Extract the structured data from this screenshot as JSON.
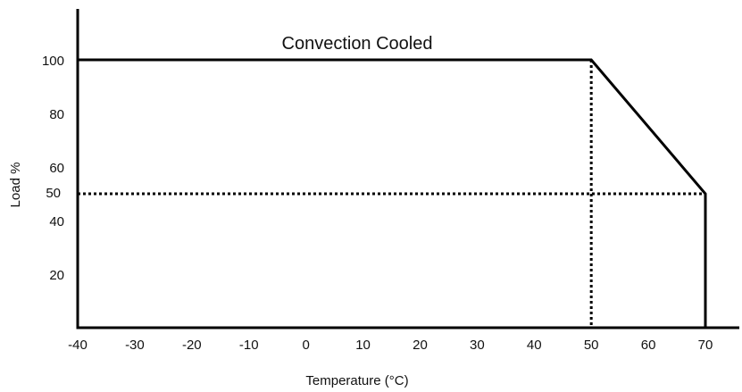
{
  "chart_data": {
    "type": "line",
    "title": "Convection Cooled",
    "xlabel": "Temperature (°C)",
    "ylabel": "Load %",
    "x_ticks": [
      "-40",
      "-30",
      "-20",
      "-10",
      "0",
      "10",
      "20",
      "30",
      "40",
      "50",
      "60",
      "70"
    ],
    "y_ticks": [
      "20",
      "40",
      "50",
      "60",
      "80",
      "100"
    ],
    "highlight_y_tick": "50",
    "highlight_color": "#e00000",
    "xlim": [
      -40,
      70
    ],
    "ylim": [
      0,
      100
    ],
    "series": [
      {
        "x": [
          -40,
          50,
          70,
          70
        ],
        "y": [
          100,
          100,
          50,
          0
        ]
      }
    ],
    "reference_lines": [
      {
        "orientation": "vertical",
        "x": 50,
        "style": "dotted"
      },
      {
        "orientation": "horizontal",
        "y": 50,
        "style": "dotted"
      }
    ],
    "grid": false,
    "legend": "none"
  }
}
